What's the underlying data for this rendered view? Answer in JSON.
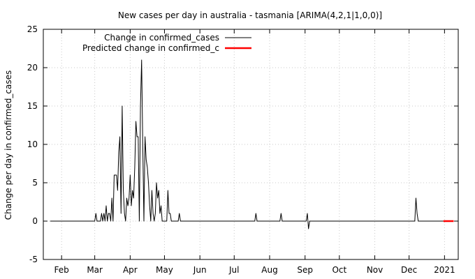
{
  "chart_data": {
    "type": "line",
    "title": "New cases per day in australia - tasmania [ARIMA(4,2,1|1,0,0)]",
    "xlabel": "",
    "ylabel": "Change per day in confirmed_cases",
    "ylim": [
      -5,
      25
    ],
    "yticks": [
      -5,
      0,
      5,
      10,
      15,
      20,
      25
    ],
    "xlim": [
      "2020-01-16",
      "2021-01-13"
    ],
    "xticks": [
      {
        "label": "Feb",
        "date": "2020-02-01"
      },
      {
        "label": "Mar",
        "date": "2020-03-01"
      },
      {
        "label": "Apr",
        "date": "2020-04-01"
      },
      {
        "label": "May",
        "date": "2020-05-01"
      },
      {
        "label": "Jun",
        "date": "2020-06-01"
      },
      {
        "label": "Jul",
        "date": "2020-07-01"
      },
      {
        "label": "Aug",
        "date": "2020-08-01"
      },
      {
        "label": "Sep",
        "date": "2020-09-01"
      },
      {
        "label": "Oct",
        "date": "2020-10-01"
      },
      {
        "label": "Nov",
        "date": "2020-11-01"
      },
      {
        "label": "Dec",
        "date": "2020-12-01"
      },
      {
        "label": "2021",
        "date": "2021-01-01"
      }
    ],
    "grid": true,
    "legend_position": "top-left",
    "series": [
      {
        "name": "Change in confirmed_cases",
        "color": "#000000",
        "points": [
          [
            "2020-01-22",
            0
          ],
          [
            "2020-03-01",
            0
          ],
          [
            "2020-03-02",
            1
          ],
          [
            "2020-03-03",
            0
          ],
          [
            "2020-03-06",
            0
          ],
          [
            "2020-03-07",
            1
          ],
          [
            "2020-03-08",
            0
          ],
          [
            "2020-03-09",
            1
          ],
          [
            "2020-03-10",
            0
          ],
          [
            "2020-03-11",
            2
          ],
          [
            "2020-03-12",
            0
          ],
          [
            "2020-03-13",
            1
          ],
          [
            "2020-03-14",
            1
          ],
          [
            "2020-03-15",
            0
          ],
          [
            "2020-03-16",
            3
          ],
          [
            "2020-03-17",
            0
          ],
          [
            "2020-03-18",
            6
          ],
          [
            "2020-03-19",
            6
          ],
          [
            "2020-03-20",
            6
          ],
          [
            "2020-03-21",
            4
          ],
          [
            "2020-03-22",
            9
          ],
          [
            "2020-03-23",
            11
          ],
          [
            "2020-03-24",
            1
          ],
          [
            "2020-03-25",
            15
          ],
          [
            "2020-03-26",
            4
          ],
          [
            "2020-03-27",
            1
          ],
          [
            "2020-03-28",
            0
          ],
          [
            "2020-03-29",
            3
          ],
          [
            "2020-03-30",
            2
          ],
          [
            "2020-03-31",
            3
          ],
          [
            "2020-04-01",
            6
          ],
          [
            "2020-04-02",
            2
          ],
          [
            "2020-04-03",
            4
          ],
          [
            "2020-04-04",
            3
          ],
          [
            "2020-04-05",
            7
          ],
          [
            "2020-04-06",
            13
          ],
          [
            "2020-04-07",
            11
          ],
          [
            "2020-04-08",
            11
          ],
          [
            "2020-04-09",
            0
          ],
          [
            "2020-04-10",
            15
          ],
          [
            "2020-04-11",
            21
          ],
          [
            "2020-04-12",
            10
          ],
          [
            "2020-04-13",
            0
          ],
          [
            "2020-04-14",
            11
          ],
          [
            "2020-04-15",
            8
          ],
          [
            "2020-04-16",
            7
          ],
          [
            "2020-04-17",
            5
          ],
          [
            "2020-04-18",
            2
          ],
          [
            "2020-04-19",
            0
          ],
          [
            "2020-04-20",
            4
          ],
          [
            "2020-04-21",
            1
          ],
          [
            "2020-04-22",
            0
          ],
          [
            "2020-04-23",
            1
          ],
          [
            "2020-04-24",
            5
          ],
          [
            "2020-04-25",
            3
          ],
          [
            "2020-04-26",
            4
          ],
          [
            "2020-04-27",
            1
          ],
          [
            "2020-04-28",
            2
          ],
          [
            "2020-04-29",
            0
          ],
          [
            "2020-05-03",
            0
          ],
          [
            "2020-05-04",
            4
          ],
          [
            "2020-05-05",
            1
          ],
          [
            "2020-05-06",
            1
          ],
          [
            "2020-05-07",
            0
          ],
          [
            "2020-05-13",
            0
          ],
          [
            "2020-05-14",
            1
          ],
          [
            "2020-05-15",
            0
          ],
          [
            "2020-07-19",
            0
          ],
          [
            "2020-07-20",
            1
          ],
          [
            "2020-07-21",
            0
          ],
          [
            "2020-08-10",
            0
          ],
          [
            "2020-08-11",
            1
          ],
          [
            "2020-08-12",
            0
          ],
          [
            "2020-09-02",
            0
          ],
          [
            "2020-09-03",
            1
          ],
          [
            "2020-09-04",
            -1
          ],
          [
            "2020-09-05",
            0
          ],
          [
            "2020-12-06",
            0
          ],
          [
            "2020-12-07",
            3
          ],
          [
            "2020-12-08",
            1
          ],
          [
            "2020-12-09",
            0
          ],
          [
            "2020-12-31",
            0
          ]
        ]
      },
      {
        "name": "Predicted change in confirmed_c",
        "color": "#ff0000",
        "points": [
          [
            "2020-12-31",
            0
          ],
          [
            "2021-01-09",
            0
          ]
        ]
      }
    ]
  }
}
